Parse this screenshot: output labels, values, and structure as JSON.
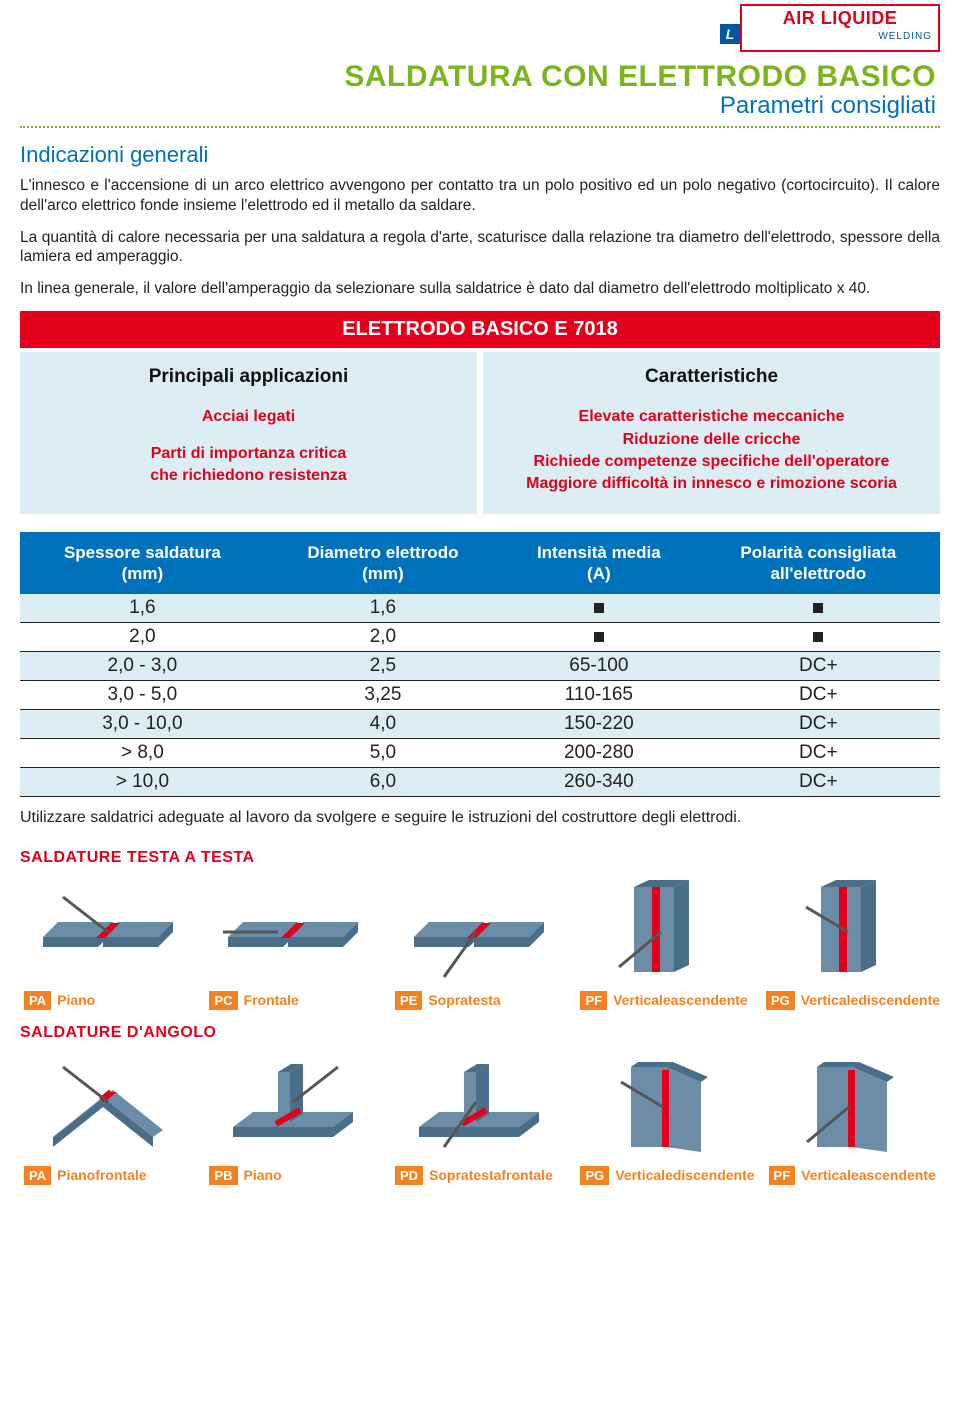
{
  "logo": {
    "brand": "AIR LIQUIDE",
    "sub": "WELDING",
    "mark": "L"
  },
  "headline": {
    "title": "SALDATURA CON ELETTRODO BASICO",
    "subtitle": "Parametri consigliati"
  },
  "section_title": "Indicazioni generali",
  "paragraphs": {
    "p1": "L'innesco e l'accensione di un arco elettrico avvengono per contatto tra un polo positivo ed un polo negativo (cortocircuito). Il calore dell'arco elettrico fonde insieme l'elettrodo ed il metallo da saldare.",
    "p2": "La quantità di calore necessaria per una saldatura a regola d'arte, scaturisce dalla relazione tra diametro dell'elettrodo, spessore della lamiera ed amperaggio.",
    "p3": "In linea generale, il valore dell'amperaggio da selezionare sulla saldatrice è dato dal diametro dell'elettrodo moltiplicato x 40."
  },
  "banner": "ELETTRODO BASICO E 7018",
  "cols": {
    "left": {
      "heading": "Principali applicazioni",
      "l1": "Acciai legati",
      "l2": "Parti di importanza critica",
      "l3": "che richiedono resistenza"
    },
    "right": {
      "heading": "Caratteristiche",
      "l1": "Elevate caratteristiche meccaniche",
      "l2": "Riduzione delle cricche",
      "l3": "Richiede competenze specifiche dell'operatore",
      "l4": "Maggiore difficoltà in innesco e rimozione scoria"
    }
  },
  "table": {
    "headers": {
      "c1": "Spessore saldatura (mm)",
      "c2": "Diametro elettrodo (mm)",
      "c3": "Intensità media (A)",
      "c4": "Polarità consigliata all'elettrodo"
    },
    "rows": [
      {
        "c1": "1,6",
        "c2": "1,6",
        "c3": "■",
        "c4": "■",
        "alt": true
      },
      {
        "c1": "2,0",
        "c2": "2,0",
        "c3": "■",
        "c4": "■",
        "alt": false
      },
      {
        "c1": "2,0 - 3,0",
        "c2": "2,5",
        "c3": "65-100",
        "c4": "DC+",
        "alt": true
      },
      {
        "c1": "3,0 - 5,0",
        "c2": "3,25",
        "c3": "110-165",
        "c4": "DC+",
        "alt": false
      },
      {
        "c1": "3,0 - 10,0",
        "c2": "4,0",
        "c3": "150-220",
        "c4": "DC+",
        "alt": true
      },
      {
        "c1": "> 8,0",
        "c2": "5,0",
        "c3": "200-280",
        "c4": "DC+",
        "alt": false
      },
      {
        "c1": "> 10,0",
        "c2": "6,0",
        "c3": "260-340",
        "c4": "DC+",
        "alt": true
      }
    ]
  },
  "note": "Utilizzare saldatrici adeguate al lavoro da svolgere e seguire le istruzioni del costruttore degli elettrodi.",
  "weld": {
    "h1": "SALDATURE TESTA A TESTA",
    "h2": "SALDATURE D'ANGOLO",
    "butt": [
      {
        "code": "PA",
        "label": "Piano"
      },
      {
        "code": "PC",
        "label": "Frontale"
      },
      {
        "code": "PE",
        "label": "Sopratesta"
      },
      {
        "code": "PF",
        "label": "Verticale ascendente"
      },
      {
        "code": "PG",
        "label": "Verticale discendente"
      }
    ],
    "fillet": [
      {
        "code": "PA",
        "label": "Piano frontale"
      },
      {
        "code": "PB",
        "label": "Piano"
      },
      {
        "code": "PD",
        "label": "Sopratesta frontale"
      },
      {
        "code": "PG",
        "label": "Verticale discendente"
      },
      {
        "code": "PF",
        "label": "Verticale ascendente"
      }
    ]
  },
  "colors": {
    "green": "#7ab51d",
    "blue": "#0072bc",
    "red": "#e2001a",
    "orange": "#f58220",
    "lightblue": "#dceef4",
    "steel1": "#6b8da8",
    "steel2": "#4a6d88"
  }
}
